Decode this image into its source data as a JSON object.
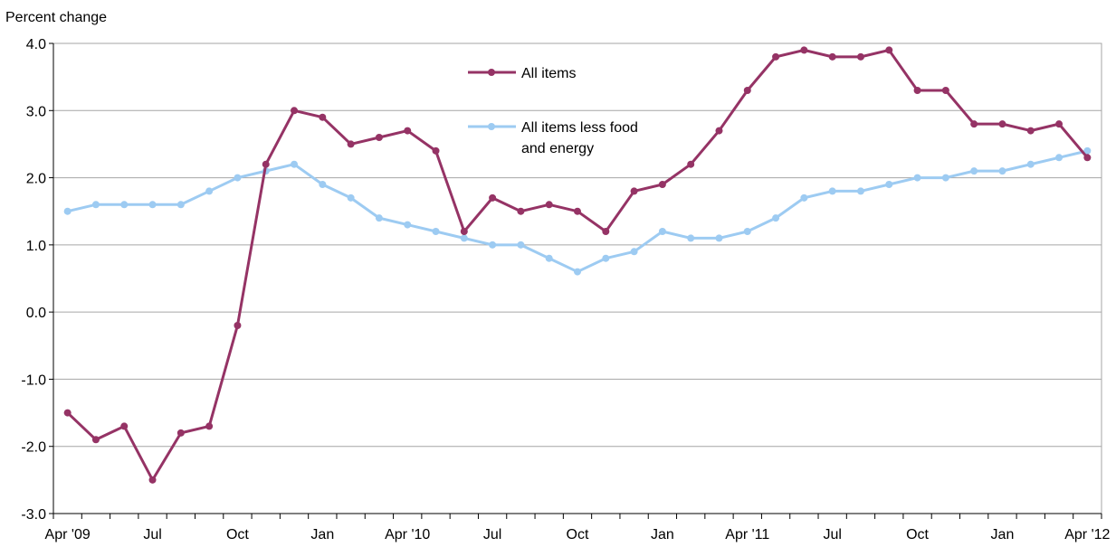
{
  "chart_data": {
    "type": "line",
    "ylabel": "Percent change",
    "ylim": [
      -3.0,
      4.0
    ],
    "y_ticks": [
      "-3.0",
      "-2.0",
      "-1.0",
      "0.0",
      "1.0",
      "2.0",
      "3.0",
      "4.0"
    ],
    "y_tick_values": [
      -3,
      -2,
      -1,
      0,
      1,
      2,
      3,
      4
    ],
    "x": [
      "Apr 2009",
      "May 2009",
      "Jun 2009",
      "Jul 2009",
      "Aug 2009",
      "Sep 2009",
      "Oct 2009",
      "Nov 2009",
      "Dec 2009",
      "Jan 2010",
      "Feb 2010",
      "Mar 2010",
      "Apr 2010",
      "May 2010",
      "Jun 2010",
      "Jul 2010",
      "Aug 2010",
      "Sep 2010",
      "Oct 2010",
      "Nov 2010",
      "Dec 2010",
      "Jan 2011",
      "Feb 2011",
      "Mar 2011",
      "Apr 2011",
      "May 2011",
      "Jun 2011",
      "Jul 2011",
      "Aug 2011",
      "Sep 2011",
      "Oct 2011",
      "Nov 2011",
      "Dec 2011",
      "Jan 2012",
      "Feb 2012",
      "Mar 2012",
      "Apr 2012"
    ],
    "x_tick_labels": [
      {
        "index": 0,
        "label": "Apr '09"
      },
      {
        "index": 3,
        "label": "Jul"
      },
      {
        "index": 6,
        "label": "Oct"
      },
      {
        "index": 9,
        "label": "Jan"
      },
      {
        "index": 12,
        "label": "Apr '10"
      },
      {
        "index": 15,
        "label": "Jul"
      },
      {
        "index": 18,
        "label": "Oct"
      },
      {
        "index": 21,
        "label": "Jan"
      },
      {
        "index": 24,
        "label": "Apr '11"
      },
      {
        "index": 27,
        "label": "Jul"
      },
      {
        "index": 30,
        "label": "Oct"
      },
      {
        "index": 33,
        "label": "Jan"
      },
      {
        "index": 36,
        "label": "Apr '12"
      }
    ],
    "grid": "horizontal",
    "legend_position": "top-center",
    "series": [
      {
        "name": "All items",
        "color": "#953365",
        "values": [
          -1.5,
          -1.9,
          -1.7,
          -2.5,
          -1.8,
          -1.7,
          -0.2,
          2.2,
          3.0,
          2.9,
          2.5,
          2.6,
          2.7,
          2.4,
          1.2,
          1.7,
          1.5,
          1.6,
          1.5,
          1.2,
          1.8,
          1.9,
          2.2,
          2.7,
          3.3,
          3.8,
          3.9,
          3.8,
          3.8,
          3.9,
          3.3,
          3.3,
          2.8,
          2.8,
          2.7,
          2.8,
          2.3
        ]
      },
      {
        "name_lines": [
          "All items less food",
          "and energy"
        ],
        "color": "#9DCBF2",
        "values": [
          1.5,
          1.6,
          1.6,
          1.6,
          1.6,
          1.8,
          2.0,
          2.1,
          2.2,
          1.9,
          1.7,
          1.4,
          1.3,
          1.2,
          1.1,
          1.0,
          1.0,
          0.8,
          0.6,
          0.8,
          0.9,
          1.2,
          1.1,
          1.1,
          1.2,
          1.4,
          1.7,
          1.8,
          1.8,
          1.9,
          2.0,
          2.0,
          2.1,
          2.1,
          2.2,
          2.3,
          2.4
        ]
      }
    ]
  }
}
